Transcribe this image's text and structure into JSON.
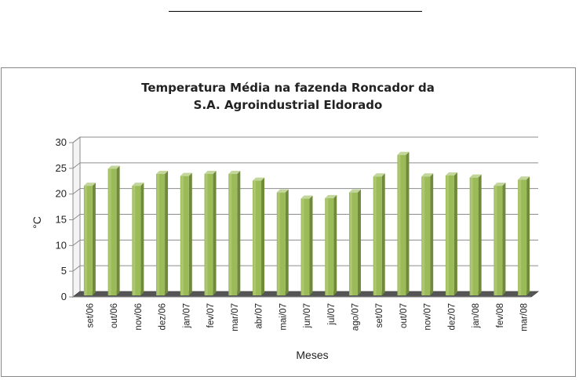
{
  "chart_data": {
    "type": "bar",
    "title_lines": [
      "Temperatura Média na fazenda Roncador da",
      "S.A. Agroindustrial Eldorado"
    ],
    "xlabel": "Meses",
    "ylabel": "°C",
    "ylim": [
      0,
      30
    ],
    "yticks": [
      "0",
      "5",
      "10",
      "15",
      "20",
      "25",
      "30"
    ],
    "grid": true,
    "legend": "none",
    "bar_color": "#9bbb59",
    "categories": [
      "set/06",
      "out/06",
      "nov/06",
      "dez/06",
      "jan/07",
      "fev/07",
      "mar/07",
      "abr/07",
      "mai/07",
      "jun/07",
      "jul/07",
      "ago/07",
      "set/07",
      "out/07",
      "nov/07",
      "dez/07",
      "jan/08",
      "fev/08",
      "mar/08"
    ],
    "values": [
      21.3,
      24.6,
      21.3,
      23.6,
      23.2,
      23.6,
      23.6,
      22.3,
      20.0,
      18.8,
      18.9,
      20.0,
      23.1,
      27.3,
      23.1,
      23.3,
      22.9,
      21.3,
      22.5
    ]
  }
}
